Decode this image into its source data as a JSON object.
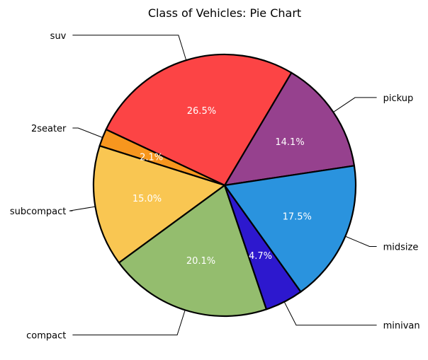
{
  "chart_data": {
    "type": "pie",
    "title": "Class of Vehicles: Pie Chart",
    "start_angle_deg": 8.6,
    "direction": "counterclockwise",
    "slices": [
      {
        "label": "pickup",
        "value": 33,
        "pct_label": "14.1%",
        "color": "#96418E"
      },
      {
        "label": "suv",
        "value": 62,
        "pct_label": "26.5%",
        "color": "#FC4445"
      },
      {
        "label": "2seater",
        "value": 5,
        "pct_label": "2.1%",
        "color": "#F7961E"
      },
      {
        "label": "subcompact",
        "value": 35,
        "pct_label": "15.0%",
        "color": "#F9C652"
      },
      {
        "label": "compact",
        "value": 47,
        "pct_label": "20.1%",
        "color": "#94BD6E"
      },
      {
        "label": "minivan",
        "value": 11,
        "pct_label": "4.7%",
        "color": "#2D18CE"
      },
      {
        "label": "midsize",
        "value": 41,
        "pct_label": "17.5%",
        "color": "#2A93DE"
      }
    ]
  }
}
